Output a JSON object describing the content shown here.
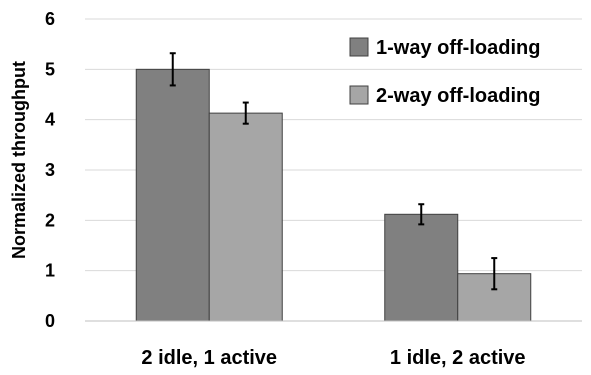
{
  "chart_data": {
    "type": "bar",
    "title": "",
    "xlabel": "",
    "ylabel": "Normalized throughput",
    "ylim": [
      0,
      6
    ],
    "yticks": [
      "0",
      "1",
      "2",
      "3",
      "4",
      "5",
      "6"
    ],
    "grid": true,
    "legend_position": "top-right",
    "categories": [
      "2 idle, 1 active",
      "1 idle, 2 active"
    ],
    "series": [
      {
        "name": "1-way off-loading",
        "color": "#808080",
        "values": [
          5.0,
          2.12
        ],
        "error": [
          0.32,
          0.2
        ]
      },
      {
        "name": "2-way off-loading",
        "color": "#a6a6a6",
        "values": [
          4.13,
          0.94
        ],
        "error": [
          0.21,
          0.31
        ]
      }
    ]
  }
}
